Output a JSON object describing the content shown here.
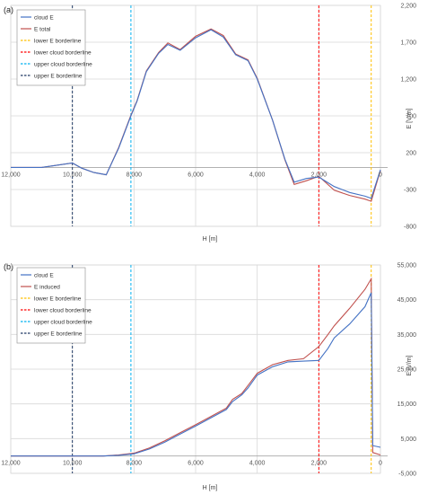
{
  "figure": {
    "colors": {
      "cloud_E": "#4472c4",
      "E_other": "#c0504d",
      "lower_E_borderline": "#ffc000",
      "lower_cloud_borderline": "#ff0000",
      "upper_cloud_borderline": "#00b0f0",
      "upper_E_borderline": "#1f3864",
      "grid": "#d9d9d9"
    }
  },
  "chart_data": [
    {
      "panel_label": "(a)",
      "type": "line",
      "xlabel": "H [m]",
      "ylabel": "E [V/m]",
      "x_reversed": true,
      "xlim": [
        0,
        12000
      ],
      "ylim": [
        -800,
        2200
      ],
      "x_ticks": [
        12000,
        10000,
        8000,
        6000,
        4000,
        2000,
        0
      ],
      "x_tick_labels": [
        "12,000",
        "10,000",
        "8,000",
        "6,000",
        "4,000",
        "2,000",
        "0"
      ],
      "y_ticks": [
        -800,
        -300,
        200,
        700,
        1200,
        1700,
        2200
      ],
      "y_tick_labels": [
        "-800",
        "-300",
        "200",
        "700",
        "1,200",
        "1,700",
        "2,200"
      ],
      "zero_line": 0,
      "legend": [
        "cloud E",
        "E total",
        "lower E borderline",
        "lower cloud borderline",
        "upper cloud borderline",
        "upper E borderline"
      ],
      "series": [
        {
          "name": "cloud E",
          "x": [
            12000,
            11000,
            10000,
            9700,
            9300,
            8900,
            8500,
            8100,
            7900,
            7600,
            7200,
            6900,
            6500,
            6000,
            5500,
            5100,
            4700,
            4300,
            4000,
            3500,
            3100,
            2800,
            2400,
            2000,
            1500,
            1000,
            500,
            300,
            0
          ],
          "y": [
            0,
            0,
            60,
            -10,
            -70,
            -100,
            260,
            700,
            900,
            1300,
            1550,
            1670,
            1590,
            1760,
            1870,
            1770,
            1530,
            1450,
            1200,
            640,
            110,
            -200,
            -150,
            -130,
            -260,
            -340,
            -390,
            -420,
            -30
          ]
        },
        {
          "name": "E total",
          "x": [
            12000,
            11000,
            10000,
            9700,
            9300,
            8900,
            8500,
            8100,
            7900,
            7600,
            7200,
            6900,
            6500,
            6000,
            5500,
            5100,
            4700,
            4300,
            4000,
            3500,
            3100,
            2800,
            2400,
            2000,
            1500,
            1000,
            500,
            300,
            0
          ],
          "y": [
            0,
            0,
            60,
            -10,
            -70,
            -100,
            270,
            710,
            910,
            1310,
            1560,
            1690,
            1600,
            1780,
            1880,
            1790,
            1540,
            1460,
            1210,
            640,
            100,
            -230,
            -180,
            -120,
            -310,
            -380,
            -430,
            -460,
            -40
          ]
        }
      ],
      "borderlines": [
        {
          "name": "lower E borderline",
          "x": 300
        },
        {
          "name": "lower cloud borderline",
          "x": 2000
        },
        {
          "name": "upper cloud borderline",
          "x": 8100
        },
        {
          "name": "upper E borderline",
          "x": 10000
        }
      ]
    },
    {
      "panel_label": "(b)",
      "type": "line",
      "xlabel": "H [m]",
      "ylabel": "E [V/m]",
      "x_reversed": true,
      "xlim": [
        0,
        12000
      ],
      "ylim": [
        -5000,
        55000
      ],
      "x_ticks": [
        12000,
        10000,
        8000,
        6000,
        4000,
        2000,
        0
      ],
      "x_tick_labels": [
        "12,000",
        "10,000",
        "8,000",
        "6,000",
        "4,000",
        "2,000",
        "0"
      ],
      "y_ticks": [
        -5000,
        5000,
        15000,
        25000,
        35000,
        45000,
        55000
      ],
      "y_tick_labels": [
        "-5,000",
        "5,000",
        "15,000",
        "25,000",
        "35,000",
        "45,000",
        "55,000"
      ],
      "zero_line": 0,
      "legend": [
        "cloud E",
        "E induced",
        "lower E borderline",
        "lower cloud borderline",
        "upper cloud borderline",
        "upper E borderline"
      ],
      "series": [
        {
          "name": "cloud E",
          "x": [
            12000,
            11000,
            10000,
            9500,
            9000,
            8500,
            8000,
            7500,
            7000,
            6500,
            6000,
            5500,
            5000,
            4800,
            4500,
            4300,
            4000,
            3500,
            3000,
            2500,
            2000,
            1700,
            1500,
            1000,
            500,
            300,
            250,
            0
          ],
          "y": [
            0,
            0,
            0,
            0,
            0,
            200,
            600,
            2000,
            4000,
            6300,
            8600,
            11000,
            13400,
            15700,
            17600,
            19600,
            23300,
            25700,
            27100,
            27300,
            27500,
            31000,
            34000,
            38000,
            43000,
            47000,
            3000,
            2500
          ]
        },
        {
          "name": "E induced",
          "x": [
            12000,
            11000,
            10000,
            9500,
            9000,
            8500,
            8000,
            7500,
            7000,
            6500,
            6000,
            5500,
            5000,
            4800,
            4500,
            4300,
            4000,
            3500,
            3000,
            2500,
            2000,
            1700,
            1500,
            1000,
            500,
            300,
            250,
            0
          ],
          "y": [
            0,
            0,
            0,
            0,
            0,
            300,
            800,
            2300,
            4400,
            6700,
            9000,
            11400,
            13800,
            16300,
            18000,
            20300,
            23800,
            26300,
            27500,
            28000,
            31500,
            35000,
            37500,
            42500,
            48000,
            51000,
            1000,
            300
          ]
        }
      ],
      "borderlines": [
        {
          "name": "lower E borderline",
          "x": 300
        },
        {
          "name": "lower cloud borderline",
          "x": 2000
        },
        {
          "name": "upper cloud borderline",
          "x": 8100
        },
        {
          "name": "upper E borderline",
          "x": 10000
        }
      ]
    }
  ]
}
